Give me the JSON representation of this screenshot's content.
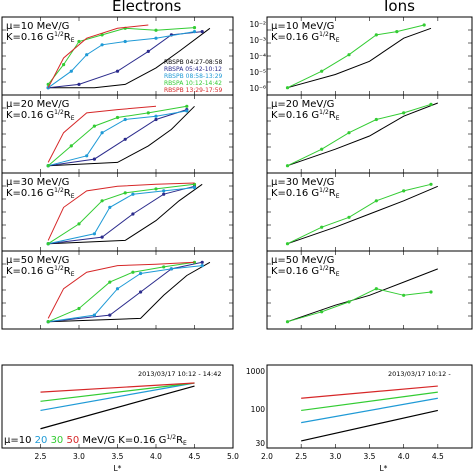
{
  "figure": {
    "left_title": "Electrons",
    "right_title": "Ions",
    "date_label": "2013/03/17 10:12 - 14:42",
    "date_label_right": "2013/03/17 10:12 - ",
    "x_axis_label": "L*",
    "x_ticks": [
      "2.5",
      "3.0",
      "3.5",
      "4.0",
      "4.5",
      "5.0"
    ],
    "x_ticks_right": [
      "2.0",
      "2.5",
      "3.0",
      "3.5",
      "4.0",
      "4.5"
    ],
    "mu_prefix": "μ=10",
    "mu_values": [
      {
        "text": "20",
        "color": "#1f9ad6"
      },
      {
        "text": "30",
        "color": "#33cc33"
      },
      {
        "text": "50",
        "color": "#d62728"
      }
    ],
    "mu_suffix": "MeV/G  K=0.16 G",
    "mu_suffix_sup": "1/2",
    "mu_suffix_end": "R",
    "mu_suffix_sub": "E",
    "ions_bottom_yticks": [
      "1000",
      "100",
      "30"
    ],
    "ions_top_yticks": [
      "10⁻²",
      "10⁻³",
      "10⁻⁴",
      "10⁻⁵",
      "10⁻⁶"
    ]
  },
  "legend": [
    {
      "label": "RBSPB 04:27-08:58",
      "color": "#000000"
    },
    {
      "label": "RBSPA 05:42-10:12",
      "color": "#2b2b8c"
    },
    {
      "label": "RBSPB 08:58-13:29",
      "color": "#1f9ad6"
    },
    {
      "label": "RBSPA 10:12-14:42",
      "color": "#33cc33"
    },
    {
      "label": "RBSPB 13:29-17:59",
      "color": "#d62728"
    }
  ],
  "panels": [
    {
      "mu": "μ=10 MeV/G",
      "k": "K=0.16 G",
      "k_sup": "1/2",
      "k_end": "R",
      "k_sub": "E"
    },
    {
      "mu": "μ=20 MeV/G",
      "k": "K=0.16 G",
      "k_sup": "1/2",
      "k_end": "R",
      "k_sub": "E"
    },
    {
      "mu": "μ=30 MeV/G",
      "k": "K=0.16 G",
      "k_sup": "1/2",
      "k_end": "R",
      "k_sub": "E"
    },
    {
      "mu": "μ=50 MeV/G",
      "k": "K=0.16 G",
      "k_sup": "1/2",
      "k_end": "R",
      "k_sub": "E"
    }
  ],
  "chart_data": [
    {
      "type": "line",
      "title": "Electrons",
      "xlabel": "L*",
      "xlim": [
        2.0,
        5.0
      ],
      "note": "Phase space density vs L* for four μ values (log y, relative units)",
      "panels": [
        {
          "mu": 10,
          "series": [
            {
              "name": "RBSPB 04:27-08:58",
              "x": [
                2.6,
                3.2,
                3.6,
                4.0,
                4.3,
                4.7
              ],
              "y": [
                0.05,
                0.05,
                0.1,
                0.35,
                0.6,
                0.95
              ]
            },
            {
              "name": "RBSPA 05:42-10:12",
              "x": [
                2.6,
                3.0,
                3.5,
                3.9,
                4.2,
                4.6
              ],
              "y": [
                0.05,
                0.1,
                0.3,
                0.6,
                0.85,
                0.9
              ]
            },
            {
              "name": "RBSPB 08:58-13:29",
              "x": [
                2.6,
                2.9,
                3.1,
                3.3,
                3.6,
                4.0,
                4.5
              ],
              "y": [
                0.05,
                0.3,
                0.55,
                0.7,
                0.75,
                0.8,
                0.9
              ]
            },
            {
              "name": "RBSPA 10:12-14:42",
              "x": [
                2.6,
                2.8,
                3.0,
                3.3,
                3.6,
                4.0,
                4.5
              ],
              "y": [
                0.1,
                0.4,
                0.75,
                0.85,
                0.95,
                0.92,
                0.96
              ]
            },
            {
              "name": "RBSPB 13:29-17:59",
              "x": [
                2.6,
                2.8,
                3.1,
                3.5,
                3.9
              ],
              "y": [
                0.05,
                0.5,
                0.8,
                0.95,
                1.0
              ]
            }
          ]
        },
        {
          "mu": 20,
          "series": [
            {
              "name": "RBSPB 04:27-08:58",
              "x": [
                2.6,
                3.5,
                3.9,
                4.2,
                4.5
              ],
              "y": [
                0.05,
                0.1,
                0.35,
                0.6,
                0.95
              ]
            },
            {
              "name": "RBSPA 05:42-10:12",
              "x": [
                2.6,
                3.2,
                3.6,
                4.0,
                4.4
              ],
              "y": [
                0.05,
                0.15,
                0.45,
                0.75,
                0.9
              ]
            },
            {
              "name": "RBSPB 08:58-13:29",
              "x": [
                2.6,
                3.1,
                3.3,
                3.6,
                4.0,
                4.4
              ],
              "y": [
                0.05,
                0.2,
                0.55,
                0.75,
                0.8,
                0.88
              ]
            },
            {
              "name": "RBSPA 10:12-14:42",
              "x": [
                2.6,
                2.9,
                3.2,
                3.5,
                3.9,
                4.4
              ],
              "y": [
                0.05,
                0.35,
                0.65,
                0.78,
                0.85,
                0.95
              ]
            },
            {
              "name": "RBSPB 13:29-17:59",
              "x": [
                2.6,
                2.8,
                3.1,
                3.5,
                4.0
              ],
              "y": [
                0.1,
                0.55,
                0.85,
                0.9,
                0.95
              ]
            }
          ]
        },
        {
          "mu": 30,
          "series": [
            {
              "name": "RBSPB 04:27-08:58",
              "x": [
                2.6,
                3.6,
                4.0,
                4.3,
                4.6
              ],
              "y": [
                0.05,
                0.1,
                0.4,
                0.7,
                0.95
              ]
            },
            {
              "name": "RBSPA 05:42-10:12",
              "x": [
                2.6,
                3.3,
                3.7,
                4.1,
                4.5
              ],
              "y": [
                0.05,
                0.15,
                0.5,
                0.8,
                0.92
              ]
            },
            {
              "name": "RBSPB 08:58-13:29",
              "x": [
                2.6,
                3.2,
                3.4,
                3.7,
                4.1,
                4.5
              ],
              "y": [
                0.05,
                0.2,
                0.6,
                0.8,
                0.85,
                0.9
              ]
            },
            {
              "name": "RBSPA 10:12-14:42",
              "x": [
                2.6,
                3.0,
                3.3,
                3.6,
                4.0,
                4.5
              ],
              "y": [
                0.05,
                0.35,
                0.7,
                0.82,
                0.88,
                0.95
              ]
            },
            {
              "name": "RBSPB 13:29-17:59",
              "x": [
                2.6,
                2.8,
                3.1,
                3.5,
                4.0,
                4.5
              ],
              "y": [
                0.1,
                0.6,
                0.85,
                0.92,
                0.95,
                0.97
              ]
            }
          ]
        },
        {
          "mu": 50,
          "series": [
            {
              "name": "RBSPB 04:27-08:58",
              "x": [
                2.6,
                3.8,
                4.1,
                4.4,
                4.7
              ],
              "y": [
                0.05,
                0.1,
                0.45,
                0.75,
                0.95
              ]
            },
            {
              "name": "RBSPA 05:42-10:12",
              "x": [
                2.6,
                3.4,
                3.8,
                4.2,
                4.6
              ],
              "y": [
                0.05,
                0.15,
                0.5,
                0.85,
                0.95
              ]
            },
            {
              "name": "RBSPB 08:58-13:29",
              "x": [
                2.6,
                3.2,
                3.5,
                3.8,
                4.2,
                4.6
              ],
              "y": [
                0.05,
                0.15,
                0.55,
                0.78,
                0.85,
                0.9
              ]
            },
            {
              "name": "RBSPA 10:12-14:42",
              "x": [
                2.6,
                3.0,
                3.4,
                3.7,
                4.1,
                4.5
              ],
              "y": [
                0.05,
                0.25,
                0.65,
                0.8,
                0.88,
                0.95
              ]
            },
            {
              "name": "RBSPB 13:29-17:59",
              "x": [
                2.6,
                2.8,
                3.1,
                3.5,
                4.0,
                4.5
              ],
              "y": [
                0.1,
                0.55,
                0.8,
                0.9,
                0.92,
                0.95
              ]
            }
          ]
        }
      ],
      "bottom_panel": {
        "note": "Energy vs L* for μ=10,20,30,50 MeV/G, K=0.16 G^1/2 R_E",
        "series": [
          {
            "name": "μ=10",
            "color": "#000000",
            "x": [
              2.5,
              4.5
            ],
            "y": [
              0.25,
              0.95
            ]
          },
          {
            "name": "μ=20",
            "color": "#1f9ad6",
            "x": [
              2.5,
              4.5
            ],
            "y": [
              0.55,
              1.0
            ]
          },
          {
            "name": "μ=30",
            "color": "#33cc33",
            "x": [
              2.5,
              4.5
            ],
            "y": [
              0.7,
              1.0
            ]
          },
          {
            "name": "μ=50",
            "color": "#d62728",
            "x": [
              2.5,
              4.5
            ],
            "y": [
              0.85,
              1.0
            ]
          }
        ]
      }
    },
    {
      "type": "line",
      "title": "Ions",
      "xlabel": "L*",
      "xlim": [
        2.0,
        5.0
      ],
      "ylim_top_log": [
        1e-06,
        0.01
      ],
      "panels": [
        {
          "mu": 10,
          "series": [
            {
              "name": "RBSPB 04:27-08:58",
              "x": [
                2.3,
                3.0,
                3.5,
                4.0,
                4.4
              ],
              "y": [
                0.05,
                0.25,
                0.45,
                0.8,
                0.95
              ]
            },
            {
              "name": "RBSPA 10:12-14:42",
              "x": [
                2.3,
                2.8,
                3.2,
                3.6,
                3.9,
                4.3
              ],
              "y": [
                0.05,
                0.3,
                0.55,
                0.85,
                0.9,
                1.0
              ]
            }
          ]
        },
        {
          "mu": 20,
          "series": [
            {
              "name": "RBSPB 04:27-08:58",
              "x": [
                2.3,
                3.0,
                3.5,
                4.0,
                4.5
              ],
              "y": [
                0.05,
                0.3,
                0.5,
                0.8,
                1.0
              ]
            },
            {
              "name": "RBSPA 10:12-14:42",
              "x": [
                2.3,
                2.8,
                3.2,
                3.6,
                4.0,
                4.4
              ],
              "y": [
                0.05,
                0.3,
                0.55,
                0.75,
                0.85,
                0.98
              ]
            }
          ]
        },
        {
          "mu": 30,
          "series": [
            {
              "name": "RBSPB 04:27-08:58",
              "x": [
                2.3,
                3.0,
                3.5,
                4.0,
                4.5
              ],
              "y": [
                0.05,
                0.3,
                0.5,
                0.7,
                0.92
              ]
            },
            {
              "name": "RBSPA 10:12-14:42",
              "x": [
                2.3,
                2.8,
                3.2,
                3.6,
                4.0,
                4.4
              ],
              "y": [
                0.05,
                0.3,
                0.45,
                0.7,
                0.85,
                0.95
              ]
            }
          ]
        },
        {
          "mu": 50,
          "series": [
            {
              "name": "RBSPB 04:27-08:58",
              "x": [
                2.3,
                3.0,
                3.5,
                4.0,
                4.5
              ],
              "y": [
                0.05,
                0.3,
                0.45,
                0.65,
                0.85
              ]
            },
            {
              "name": "RBSPA 10:12-14:42",
              "x": [
                2.3,
                2.8,
                3.2,
                3.6,
                4.0,
                4.4
              ],
              "y": [
                0.05,
                0.2,
                0.35,
                0.55,
                0.45,
                0.5
              ]
            }
          ]
        }
      ],
      "bottom_panel": {
        "ylim": [
          30,
          1000
        ],
        "series": [
          {
            "name": "μ=10",
            "color": "#000000",
            "x": [
              2.5,
              4.5
            ],
            "y": [
              0.05,
              0.55
            ]
          },
          {
            "name": "μ=20",
            "color": "#1f9ad6",
            "x": [
              2.5,
              4.5
            ],
            "y": [
              0.35,
              0.75
            ]
          },
          {
            "name": "μ=30",
            "color": "#33cc33",
            "x": [
              2.5,
              4.5
            ],
            "y": [
              0.55,
              0.85
            ]
          },
          {
            "name": "μ=50",
            "color": "#d62728",
            "x": [
              2.5,
              4.5
            ],
            "y": [
              0.75,
              0.95
            ]
          }
        ]
      }
    }
  ]
}
